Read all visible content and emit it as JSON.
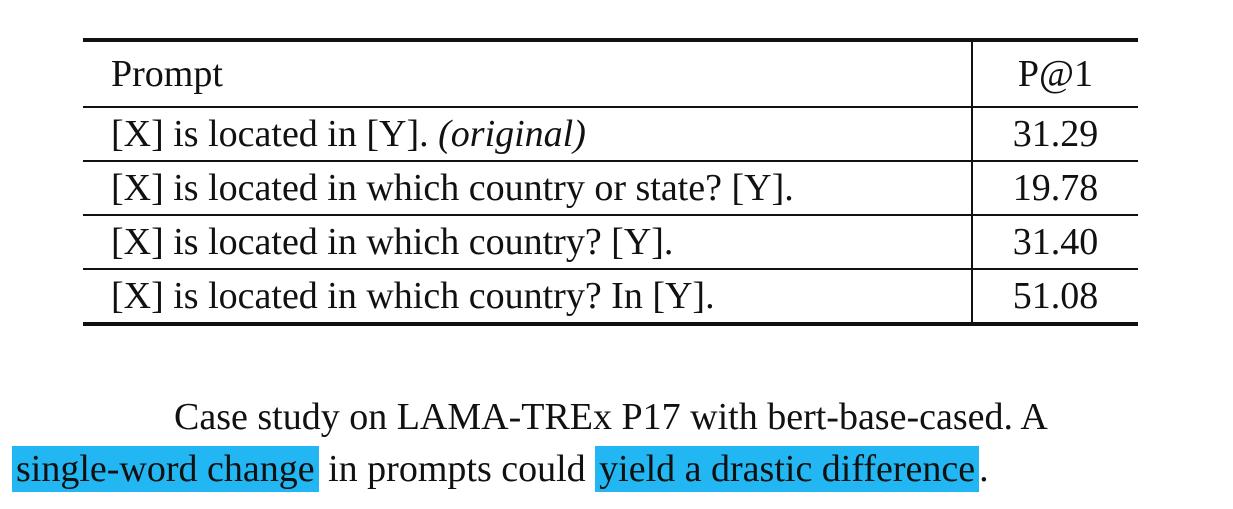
{
  "table": {
    "headers": [
      "Prompt",
      "P@1"
    ],
    "rows": [
      {
        "prompt": "[X] is located in [Y].",
        "note": "(original)",
        "score": "31.29"
      },
      {
        "prompt": "[X] is located in which country or state? [Y].",
        "note": "",
        "score": "19.78"
      },
      {
        "prompt": "[X] is located in which country? [Y].",
        "note": "",
        "score": "31.40"
      },
      {
        "prompt": "[X] is located in which country? In [Y].",
        "note": "",
        "score": "51.08"
      }
    ]
  },
  "caption": {
    "line1": "Case study on LAMA-TREx P17 with bert-base-cased. A",
    "hl1": "single-word change",
    "mid": " in prompts could ",
    "hl2": "yield a drastic difference",
    "end": ".",
    "highlight_color": "#22b6f2"
  }
}
